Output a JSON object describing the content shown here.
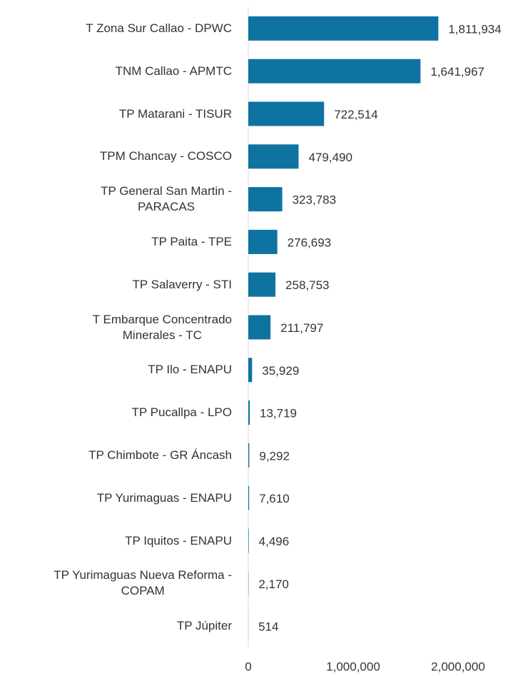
{
  "chart_data": {
    "type": "hbar",
    "categories": [
      "T Zona Sur Callao - DPWC",
      "TNM Callao - APMTC",
      "TP Matarani - TISUR",
      "TPM Chancay - COSCO",
      "TP General San Martin -\nPARACAS",
      "TP Paita - TPE",
      "TP Salaverry - STI",
      "T Embarque Concentrado\nMinerales - TC",
      "TP Ilo - ENAPU",
      "TP Pucallpa - LPO",
      "TP Chimbote - GR Áncash",
      "TP Yurimaguas - ENAPU",
      "TP Iquitos - ENAPU",
      "TP Yurimaguas Nueva Reforma -\nCOPAM",
      "TP Júpiter"
    ],
    "values": [
      1811934,
      1641967,
      722514,
      479490,
      323783,
      276693,
      258753,
      211797,
      35929,
      13719,
      9292,
      7610,
      4496,
      2170,
      514
    ],
    "value_labels": [
      "1,811,934",
      "1,641,967",
      "722,514",
      "479,490",
      "323,783",
      "276,693",
      "258,753",
      "211,797",
      "35,929",
      "13,719",
      "9,292",
      "7,610",
      "4,496",
      "2,170",
      "514"
    ],
    "color": "#0f73a1",
    "xlim": [
      0,
      2500000
    ],
    "xticks": [
      0,
      {
        "value": 1000000,
        "label": "1,000,000"
      },
      {
        "value": 2000000,
        "label": "2,000,000"
      }
    ],
    "grid": false
  }
}
